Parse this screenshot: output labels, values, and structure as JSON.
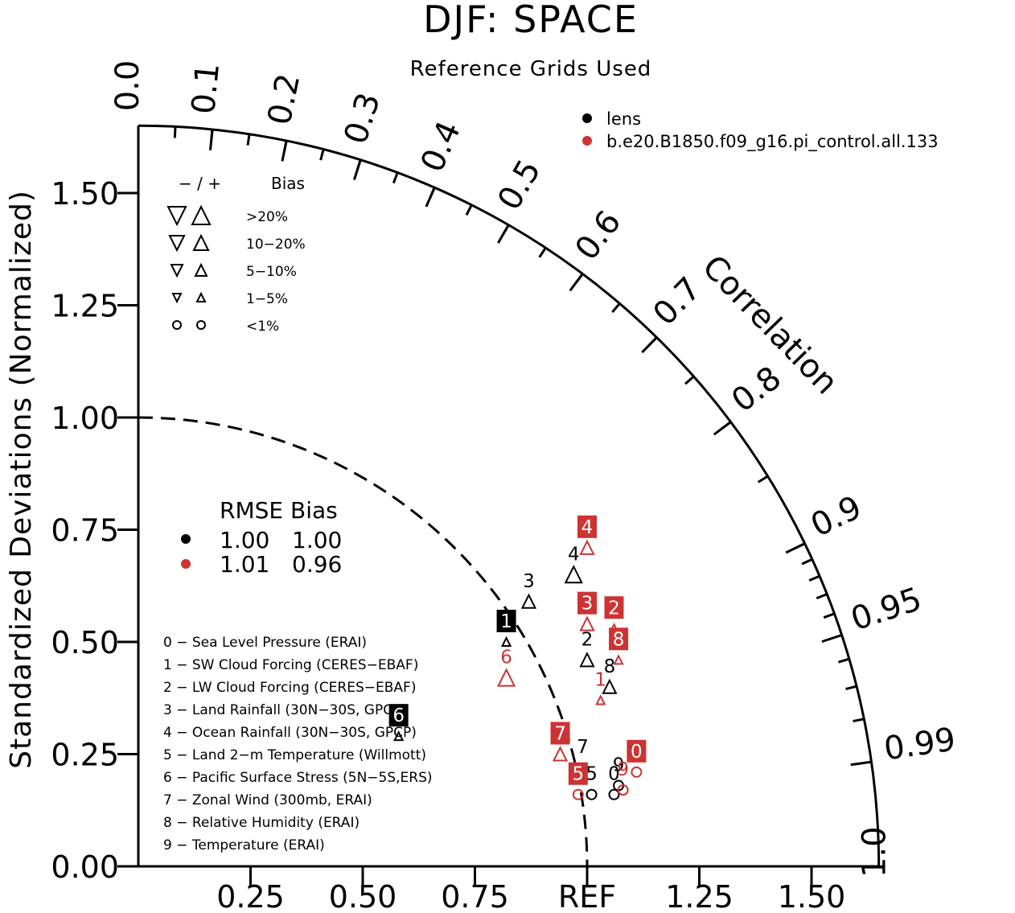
{
  "title": "DJF: SPACE",
  "subtitle": "Reference Grids Used",
  "colors": {
    "lens": "#000000",
    "control": "#cd3333",
    "box_lens": "#000000",
    "box_control": "#cd3333"
  },
  "legend": {
    "series": [
      {
        "name": "lens",
        "color": "#000000"
      },
      {
        "name": "b.e20.B1850.f09_g16.pi_control.all.133",
        "color": "#cd3333"
      }
    ]
  },
  "bias_legend": {
    "header_sign": "−  /  +",
    "header_label": "Bias",
    "rows": [
      {
        "label": ">20%",
        "shape": "triangle",
        "size": "large"
      },
      {
        "label": "10−20%",
        "shape": "triangle",
        "size": "medium"
      },
      {
        "label": "5−10%",
        "shape": "triangle",
        "size": "small"
      },
      {
        "label": "1−5%",
        "shape": "triangle",
        "size": "tiny"
      },
      {
        "label": "<1%",
        "shape": "circle",
        "size": "small"
      }
    ]
  },
  "rmse_table": {
    "header": "RMSE Bias",
    "rows": [
      {
        "color": "#000000",
        "rmse": "1.00",
        "bias": "1.00"
      },
      {
        "color": "#cd3333",
        "rmse": "1.01",
        "bias": "0.96"
      }
    ]
  },
  "variables": [
    "0 − Sea Level Pressure (ERAI)",
    "1 − SW Cloud Forcing (CERES−EBAF)",
    "2 − LW Cloud Forcing (CERES−EBAF)",
    "3 − Land Rainfall (30N−30S, GPCP)",
    "4 − Ocean Rainfall (30N−30S, GPCP)",
    "5 − Land 2−m Temperature (Willmott)",
    "6 − Pacific Surface Stress (5N−5S,ERS)",
    "7 − Zonal Wind (300mb, ERAI)",
    "8 − Relative Humidity (ERAI)",
    "9 − Temperature (ERAI)"
  ],
  "chart_data": {
    "type": "scatter",
    "title": "DJF: SPACE",
    "subtitle": "Reference Grids Used",
    "ylabel": "Standardized Deviations (Normalized)",
    "arc_label": "Correlation",
    "ref_label": "REF",
    "xlim": [
      0,
      1.65
    ],
    "ylim": [
      0,
      1.65
    ],
    "y_ticks": [
      "0.00",
      "0.25",
      "0.50",
      "0.75",
      "1.00",
      "1.25",
      "1.50"
    ],
    "x_ticks": [
      "0.25",
      "0.50",
      "0.75",
      "REF",
      "1.25",
      "1.50"
    ],
    "corr_ticks": [
      "0.0",
      "0.1",
      "0.2",
      "0.3",
      "0.4",
      "0.5",
      "0.6",
      "0.7",
      "0.8",
      "0.9",
      "0.95",
      "0.99",
      "1.0"
    ],
    "series": [
      {
        "name": "lens",
        "color": "#000000",
        "points": [
          {
            "id": "0",
            "x": 1.06,
            "y": 0.16,
            "shape": "circle"
          },
          {
            "id": "1",
            "x": 0.82,
            "y": 0.5,
            "shape": "triangle-up",
            "size": "tiny"
          },
          {
            "id": "2",
            "x": 1.0,
            "y": 0.46,
            "shape": "triangle-up",
            "size": "small"
          },
          {
            "id": "3",
            "x": 0.87,
            "y": 0.59,
            "shape": "triangle-up",
            "size": "small"
          },
          {
            "id": "4",
            "x": 0.97,
            "y": 0.65,
            "shape": "triangle-up",
            "size": "medium"
          },
          {
            "id": "5",
            "x": 1.01,
            "y": 0.16,
            "shape": "circle"
          },
          {
            "id": "6",
            "x": 0.58,
            "y": 0.29,
            "shape": "triangle-up",
            "size": "tiny"
          },
          {
            "id": "7",
            "x": 0.99,
            "y": 0.22,
            "shape": "triangle-down",
            "size": "tiny"
          },
          {
            "id": "8",
            "x": 1.05,
            "y": 0.4,
            "shape": "triangle-up",
            "size": "small"
          },
          {
            "id": "9",
            "x": 1.07,
            "y": 0.18,
            "shape": "circle"
          }
        ]
      },
      {
        "name": "b.e20.B1850.f09_g16.pi_control.all.133",
        "color": "#cd3333",
        "points": [
          {
            "id": "0",
            "x": 1.11,
            "y": 0.21,
            "shape": "circle"
          },
          {
            "id": "1",
            "x": 1.03,
            "y": 0.37,
            "shape": "triangle-up",
            "size": "tiny"
          },
          {
            "id": "2",
            "x": 1.06,
            "y": 0.53,
            "shape": "triangle-up",
            "size": "tiny"
          },
          {
            "id": "3",
            "x": 1.0,
            "y": 0.54,
            "shape": "triangle-up",
            "size": "small"
          },
          {
            "id": "4",
            "x": 1.0,
            "y": 0.71,
            "shape": "triangle-up",
            "size": "small"
          },
          {
            "id": "5",
            "x": 0.98,
            "y": 0.16,
            "shape": "circle"
          },
          {
            "id": "6",
            "x": 0.82,
            "y": 0.42,
            "shape": "triangle-up",
            "size": "medium"
          },
          {
            "id": "7",
            "x": 0.94,
            "y": 0.25,
            "shape": "triangle-up",
            "size": "small"
          },
          {
            "id": "8",
            "x": 1.07,
            "y": 0.46,
            "shape": "triangle-up",
            "size": "tiny"
          },
          {
            "id": "9",
            "x": 1.08,
            "y": 0.17,
            "shape": "circle"
          }
        ]
      }
    ]
  }
}
